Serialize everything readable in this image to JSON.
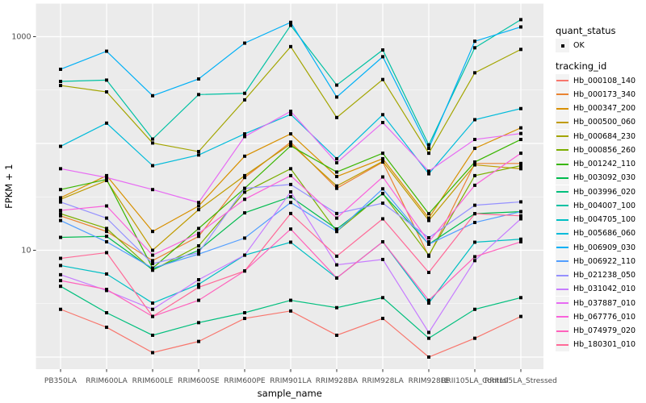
{
  "chart_data": {
    "type": "line",
    "xlabel": "sample_name",
    "ylabel": "FPKM + 1",
    "y_scale": "log10",
    "y_axis_ticks": [
      {
        "value": 1000,
        "label": "1000"
      },
      {
        "value": 10,
        "label": "10"
      }
    ],
    "y_major_gridlines": [
      1,
      10,
      100,
      1000
    ],
    "y_minor_gridlines": [
      3.162,
      31.62,
      316.2
    ],
    "categories": [
      "PB350LA",
      "RRIM600LA",
      "RRIM600LE",
      "RRIM600SE",
      "RRIM600PE",
      "RRIM901LA",
      "RRIM928BA",
      "RRIM928LA",
      "RRIM928LE",
      "RRII105LA_Control",
      "RRII105LA_Stressed"
    ],
    "series": [
      {
        "name": "Hb_000108_140",
        "color": "#F8766D",
        "values": [
          2.8,
          1.9,
          1.1,
          1.4,
          2.3,
          2.7,
          1.6,
          2.3,
          1.0,
          1.5,
          2.4
        ]
      },
      {
        "name": "Hb_000173_340",
        "color": "#EA8331",
        "values": [
          21,
          15,
          8,
          13.5,
          48,
          103,
          38,
          67,
          8.8,
          65,
          65
        ]
      },
      {
        "name": "Hb_000347_200",
        "color": "#D89000",
        "values": [
          31,
          50,
          15,
          26,
          76,
          123,
          49,
          72,
          20,
          90,
          140
        ]
      },
      {
        "name": "Hb_000500_060",
        "color": "#C09B00",
        "values": [
          30,
          45,
          10,
          24,
          50,
          99,
          40,
          68,
          19,
          63,
          58
        ]
      },
      {
        "name": "Hb_000684_230",
        "color": "#A3A500",
        "values": [
          349,
          304,
          101,
          84,
          256,
          807,
          175,
          397,
          81,
          459,
          760
        ]
      },
      {
        "name": "Hb_000856_260",
        "color": "#7CAE00",
        "values": [
          22,
          16,
          6.5,
          11,
          35,
          58,
          15,
          34,
          9,
          50,
          62
        ]
      },
      {
        "name": "Hb_001242_110",
        "color": "#39B600",
        "values": [
          37,
          46,
          6.8,
          16,
          38,
          95,
          54,
          81,
          22,
          67,
          109
        ]
      },
      {
        "name": "Hb_003092_030",
        "color": "#00BB4E",
        "values": [
          13.2,
          13.5,
          6.6,
          10,
          22.4,
          31.7,
          15.8,
          33.9,
          11.4,
          22,
          23
        ]
      },
      {
        "name": "Hb_003996_020",
        "color": "#00BF7D",
        "values": [
          4.6,
          2.6,
          1.6,
          2.1,
          2.6,
          3.4,
          2.9,
          3.6,
          1.5,
          2.8,
          3.6
        ]
      },
      {
        "name": "Hb_004007_100",
        "color": "#00C1A3",
        "values": [
          381,
          392,
          110,
          287,
          295,
          1276,
          352,
          751,
          97,
          787,
          1443
        ]
      },
      {
        "name": "Hb_004705_100",
        "color": "#00BFC4",
        "values": [
          7.2,
          6.0,
          3.2,
          4.8,
          9.0,
          11.9,
          5.5,
          12,
          3.2,
          11.9,
          12.7
        ]
      },
      {
        "name": "Hb_005686_060",
        "color": "#00BBDA",
        "values": [
          94,
          155,
          62,
          78,
          123,
          187,
          72,
          186,
          52,
          167,
          212
        ]
      },
      {
        "name": "Hb_006909_030",
        "color": "#00B0F6",
        "values": [
          495,
          731,
          280,
          402,
          870,
          1362,
          272,
          649,
          90,
          906,
          1233
        ]
      },
      {
        "name": "Hb_006922_110",
        "color": "#529EFF",
        "values": [
          19,
          12,
          6.8,
          9.2,
          13,
          28,
          15,
          37.6,
          11.4,
          18.2,
          23
        ]
      },
      {
        "name": "Hb_021238_050",
        "color": "#9590FF",
        "values": [
          28.3,
          20,
          7.5,
          9.5,
          38,
          41.3,
          22.1,
          27.6,
          13.1,
          26.4,
          28.4
        ]
      },
      {
        "name": "Hb_031042_010",
        "color": "#C77CFF",
        "values": [
          5.9,
          4.2,
          2.8,
          5.3,
          9.0,
          35.2,
          7.3,
          8.2,
          1.7,
          8.0,
          19.7
        ]
      },
      {
        "name": "Hb_037887_010",
        "color": "#E76BF3",
        "values": [
          58,
          48,
          37,
          28,
          116,
          200,
          66,
          157,
          55,
          109,
          124
        ]
      },
      {
        "name": "Hb_067776_010",
        "color": "#FA62DB",
        "values": [
          23.6,
          26,
          9,
          14.4,
          30,
          50,
          20,
          48.6,
          12,
          40.6,
          81
        ]
      },
      {
        "name": "Hb_074979_020",
        "color": "#FF62BC",
        "values": [
          5.2,
          4.3,
          2.4,
          3.4,
          6.4,
          15.8,
          5.5,
          12,
          3.4,
          8.7,
          12
        ]
      },
      {
        "name": "Hb_180301_010",
        "color": "#FF6A98",
        "values": [
          8.4,
          9.5,
          2.4,
          4.5,
          6.4,
          22.1,
          8.8,
          19.7,
          6.2,
          22,
          21
        ]
      }
    ],
    "legend": {
      "quant_status_title": "quant_status",
      "quant_status_items": [
        {
          "label": "OK",
          "symbol": "point"
        }
      ],
      "tracking_id_title": "tracking_id"
    },
    "point_color": "#000000",
    "panel_background": "#EBEBEB",
    "gridline_color": "#FFFFFF",
    "legend_key_background": "#F3F3F3",
    "axis_text_color": "#4D4D4D",
    "legend_position": "right",
    "grid": true
  }
}
